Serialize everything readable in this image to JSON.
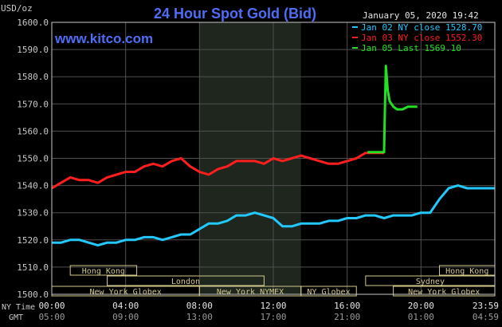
{
  "chart_data": {
    "type": "line",
    "title": "24 Hour Spot Gold (Bid)",
    "website": "www.kitco.com",
    "timestamp": "January 05, 2020 19:42",
    "ylabel": "USD/oz",
    "ylim": [
      1500,
      1600
    ],
    "yticks": [
      "1600.0",
      "1590.0",
      "1580.0",
      "1570.0",
      "1560.0",
      "1550.0",
      "1540.0",
      "1530.0",
      "1520.0",
      "1510.0",
      "1500.0"
    ],
    "x_tick_labels_ny": [
      "00:00",
      "04:00",
      "08:00",
      "12:00",
      "16:00",
      "20:00",
      "23:59"
    ],
    "x_tick_labels_gmt": [
      "05:00",
      "09:00",
      "13:00",
      "17:00",
      "21:00",
      "01:00",
      "04:59"
    ],
    "x_row_labels": {
      "ny": "NY Time",
      "gmt": "GMT"
    },
    "xlim_hours": [
      0,
      24
    ],
    "grid": true,
    "legend_position": "top-right",
    "colors": {
      "background": "#000000",
      "grid": "#505050",
      "highlight": "#1e261e",
      "title": "#4f6df5",
      "text": "#c8c8c8"
    },
    "series": [
      {
        "name": "Jan 02 NY close 1528.70",
        "color": "#22c8ff",
        "x": [
          0,
          0.5,
          1,
          1.5,
          2,
          2.5,
          3,
          3.5,
          4,
          4.5,
          5,
          5.5,
          6,
          6.5,
          7,
          7.5,
          8,
          8.5,
          9,
          9.5,
          10,
          10.5,
          11,
          11.5,
          12,
          12.5,
          13,
          13.5,
          14,
          14.5,
          15,
          15.5,
          16,
          16.5,
          17,
          17.5,
          18,
          18.5,
          19,
          19.5,
          20,
          20.5,
          21,
          21.5,
          22,
          22.5,
          23,
          23.5,
          24
        ],
        "values": [
          1519,
          1519,
          1520,
          1520,
          1519,
          1518,
          1519,
          1519,
          1520,
          1520,
          1521,
          1521,
          1520,
          1521,
          1522,
          1522,
          1524,
          1526,
          1526,
          1527,
          1529,
          1529,
          1530,
          1529,
          1528,
          1525,
          1525,
          1526,
          1526,
          1526,
          1527,
          1527,
          1528,
          1528,
          1529,
          1529,
          1528,
          1529,
          1529,
          1529,
          1530,
          1530,
          1535,
          1539,
          1540,
          1539,
          1539,
          1539,
          1539
        ]
      },
      {
        "name": "Jan 03 NY close 1552.30",
        "color": "#ff1e1e",
        "x": [
          0,
          0.5,
          1,
          1.5,
          2,
          2.5,
          3,
          3.5,
          4,
          4.5,
          5,
          5.5,
          6,
          6.5,
          7,
          7.5,
          8,
          8.5,
          9,
          9.5,
          10,
          10.5,
          11,
          11.5,
          12,
          12.5,
          13,
          13.5,
          14,
          14.5,
          15,
          15.5,
          16,
          16.5,
          17,
          17.5,
          18
        ],
        "values": [
          1539,
          1541,
          1543,
          1542,
          1542,
          1541,
          1543,
          1544,
          1545,
          1545,
          1547,
          1548,
          1547,
          1549,
          1550,
          1547,
          1545,
          1544,
          1546,
          1547,
          1549,
          1549,
          1549,
          1548,
          1550,
          1549,
          1550,
          1551,
          1550,
          1549,
          1548,
          1548,
          1549,
          1550,
          1552,
          1552,
          1552
        ]
      },
      {
        "name": "Jan 05 Last 1569.10",
        "color": "#22e022",
        "x": [
          17.1,
          17.5,
          18,
          18.05,
          18.1,
          18.2,
          18.3,
          18.5,
          18.7,
          19,
          19.3,
          19.6,
          19.8
        ],
        "values": [
          1552.3,
          1552.3,
          1552.3,
          1570,
          1584,
          1575,
          1571,
          1569,
          1568,
          1568,
          1569,
          1569,
          1569
        ]
      }
    ],
    "market_sessions": [
      {
        "label": "Hong Kong",
        "start": 1.0,
        "end": 4.6,
        "row": 1
      },
      {
        "label": "Hong Kong",
        "start": 21.0,
        "end": 24.0,
        "row": 1
      },
      {
        "label": "London",
        "start": 3.0,
        "end": 11.5,
        "row": 2
      },
      {
        "label": "Sydney",
        "start": 17.0,
        "end": 24.0,
        "row": 2
      },
      {
        "label": "New York Globex",
        "start": 0.0,
        "end": 8.0,
        "row": 3
      },
      {
        "label": "New York NYMEX",
        "start": 8.0,
        "end": 13.5,
        "row": 3
      },
      {
        "label": "NY Globex",
        "start": 13.5,
        "end": 16.5,
        "row": 3
      },
      {
        "label": "New York Globex",
        "start": 18.5,
        "end": 24.0,
        "row": 3
      }
    ],
    "shaded_hours": [
      8.0,
      13.5
    ]
  }
}
